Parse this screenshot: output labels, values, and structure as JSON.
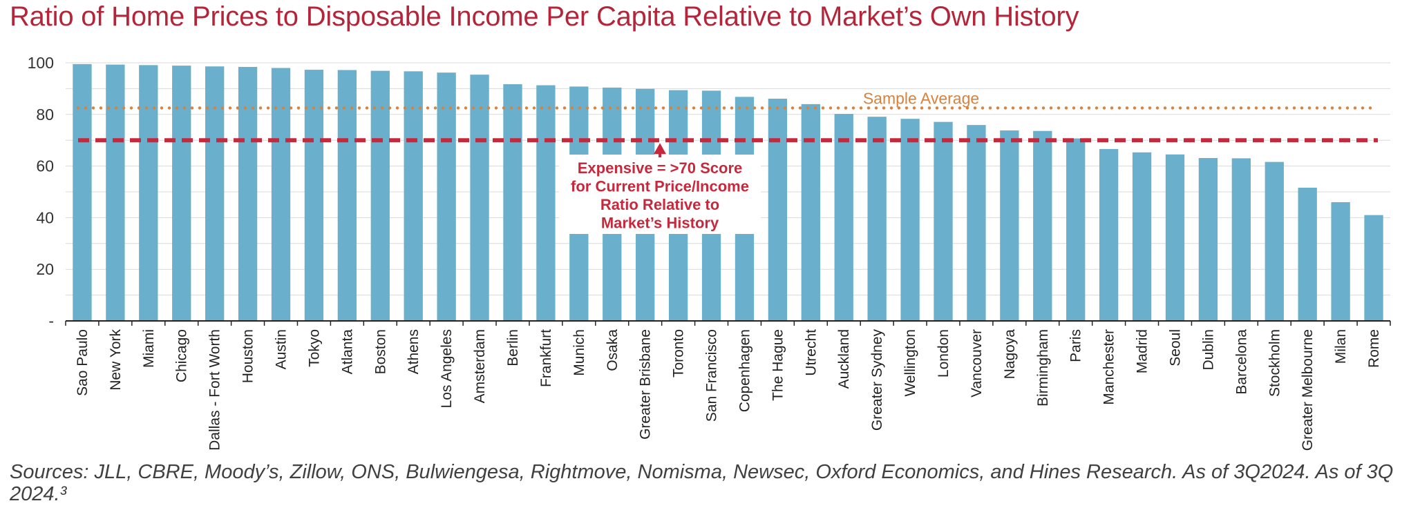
{
  "title": "Ratio of Home Prices to Disposable Income Per Capita Relative to Market’s Own History",
  "source": "Sources: JLL, CBRE, Moody’s, Zillow, ONS, Bulwiengesa, Rightmove, Nomisma, Newsec, Oxford Economics, and Hines Research. As of 3Q2024. As of 3Q 2024.³",
  "colors": {
    "title": "#b5253a",
    "bar": "#6aafcb",
    "threshold": "#c8283c",
    "average": "#d9823b",
    "grid": "#d9d9d9"
  },
  "chart_data": {
    "type": "bar",
    "ylim": [
      0,
      100
    ],
    "y_ticks": [
      {
        "value": 0,
        "label": "-"
      },
      {
        "value": 20,
        "label": "20"
      },
      {
        "value": 40,
        "label": "40"
      },
      {
        "value": 60,
        "label": "60"
      },
      {
        "value": 80,
        "label": "80"
      },
      {
        "value": 100,
        "label": "100"
      }
    ],
    "grid": true,
    "categories": [
      "Sao Paulo",
      "New York",
      "Miami",
      "Chicago",
      "Dallas - Fort Worth",
      "Houston",
      "Austin",
      "Tokyo",
      "Atlanta",
      "Boston",
      "Athens",
      "Los Angeles",
      "Amsterdam",
      "Berlin",
      "Frankfurt",
      "Munich",
      "Osaka",
      "Greater Brisbane",
      "Toronto",
      "San Francisco",
      "Copenhagen",
      "The Hague",
      "Utrecht",
      "Auckland",
      "Greater Sydney",
      "Wellington",
      "London",
      "Vancouver",
      "Nagoya",
      "Birmingham",
      "Paris",
      "Manchester",
      "Madrid",
      "Seoul",
      "Dublin",
      "Barcelona",
      "Stockholm",
      "Greater Melbourne",
      "Milan",
      "Rome"
    ],
    "values": [
      99.5,
      99.3,
      99.1,
      98.9,
      98.6,
      98.4,
      98.0,
      97.3,
      97.2,
      96.9,
      96.7,
      96.2,
      95.4,
      91.7,
      91.3,
      90.8,
      90.4,
      89.9,
      89.4,
      89.2,
      86.8,
      86.1,
      84.0,
      80.2,
      79.1,
      78.3,
      77.1,
      75.9,
      73.8,
      73.6,
      70.7,
      66.6,
      65.3,
      64.5,
      63.1,
      63.0,
      61.6,
      51.6,
      46.0,
      41.0
    ],
    "reference_lines": [
      {
        "value": 82.5,
        "style": "dotted",
        "label": "Sample Average"
      },
      {
        "value": 70,
        "style": "dashed",
        "label": ""
      }
    ],
    "annotations": [
      {
        "text": "Expensive = >70 Score\nfor Current Price/Income\nRatio Relative to\nMarket’s History"
      }
    ]
  }
}
